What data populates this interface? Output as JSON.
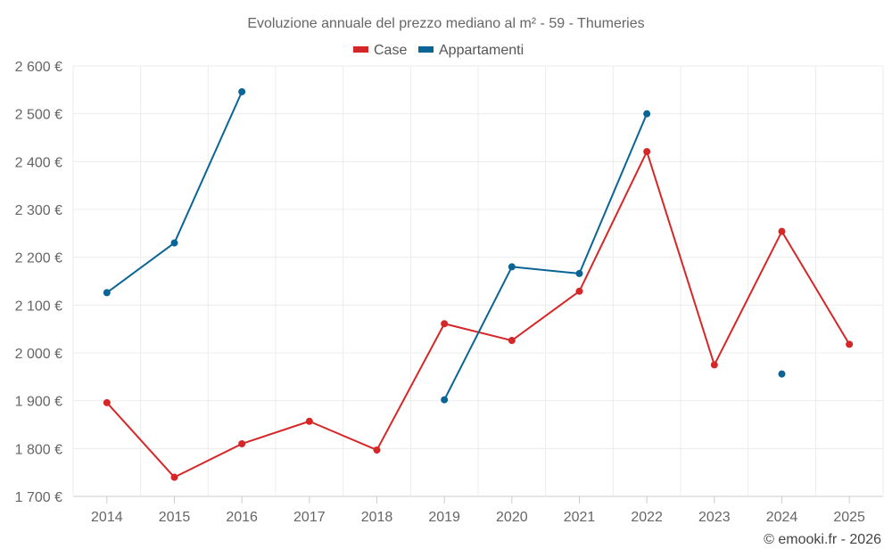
{
  "chart_data": {
    "type": "line",
    "title": "Evoluzione annuale del prezzo mediano al m² - 59 - Thumeries",
    "xlabel": "",
    "ylabel": "",
    "ylim": [
      1700,
      2600
    ],
    "y_ticks": [
      1700,
      1800,
      1900,
      2000,
      2100,
      2200,
      2300,
      2400,
      2500,
      2600
    ],
    "y_tick_labels": [
      "1 700 €",
      "1 800 €",
      "1 900 €",
      "2 000 €",
      "2 100 €",
      "2 200 €",
      "2 300 €",
      "2 400 €",
      "2 500 €",
      "2 600 €"
    ],
    "categories": [
      "2014",
      "2015",
      "2016",
      "2017",
      "2018",
      "2019",
      "2020",
      "2021",
      "2022",
      "2023",
      "2024",
      "2025"
    ],
    "grid": true,
    "legend_position": "top-center",
    "series": [
      {
        "name": "Case",
        "color": "#d62728",
        "values": [
          1896,
          1740,
          1810,
          1857,
          1797,
          2061,
          2026,
          2129,
          2421,
          1975,
          2254,
          2018
        ]
      },
      {
        "name": "Appartamenti",
        "color": "#0a6496",
        "values": [
          2126,
          2230,
          2546,
          null,
          null,
          1902,
          2180,
          2166,
          2500,
          null,
          1956,
          null
        ]
      }
    ],
    "credit": "© emooki.fr - 2026"
  }
}
